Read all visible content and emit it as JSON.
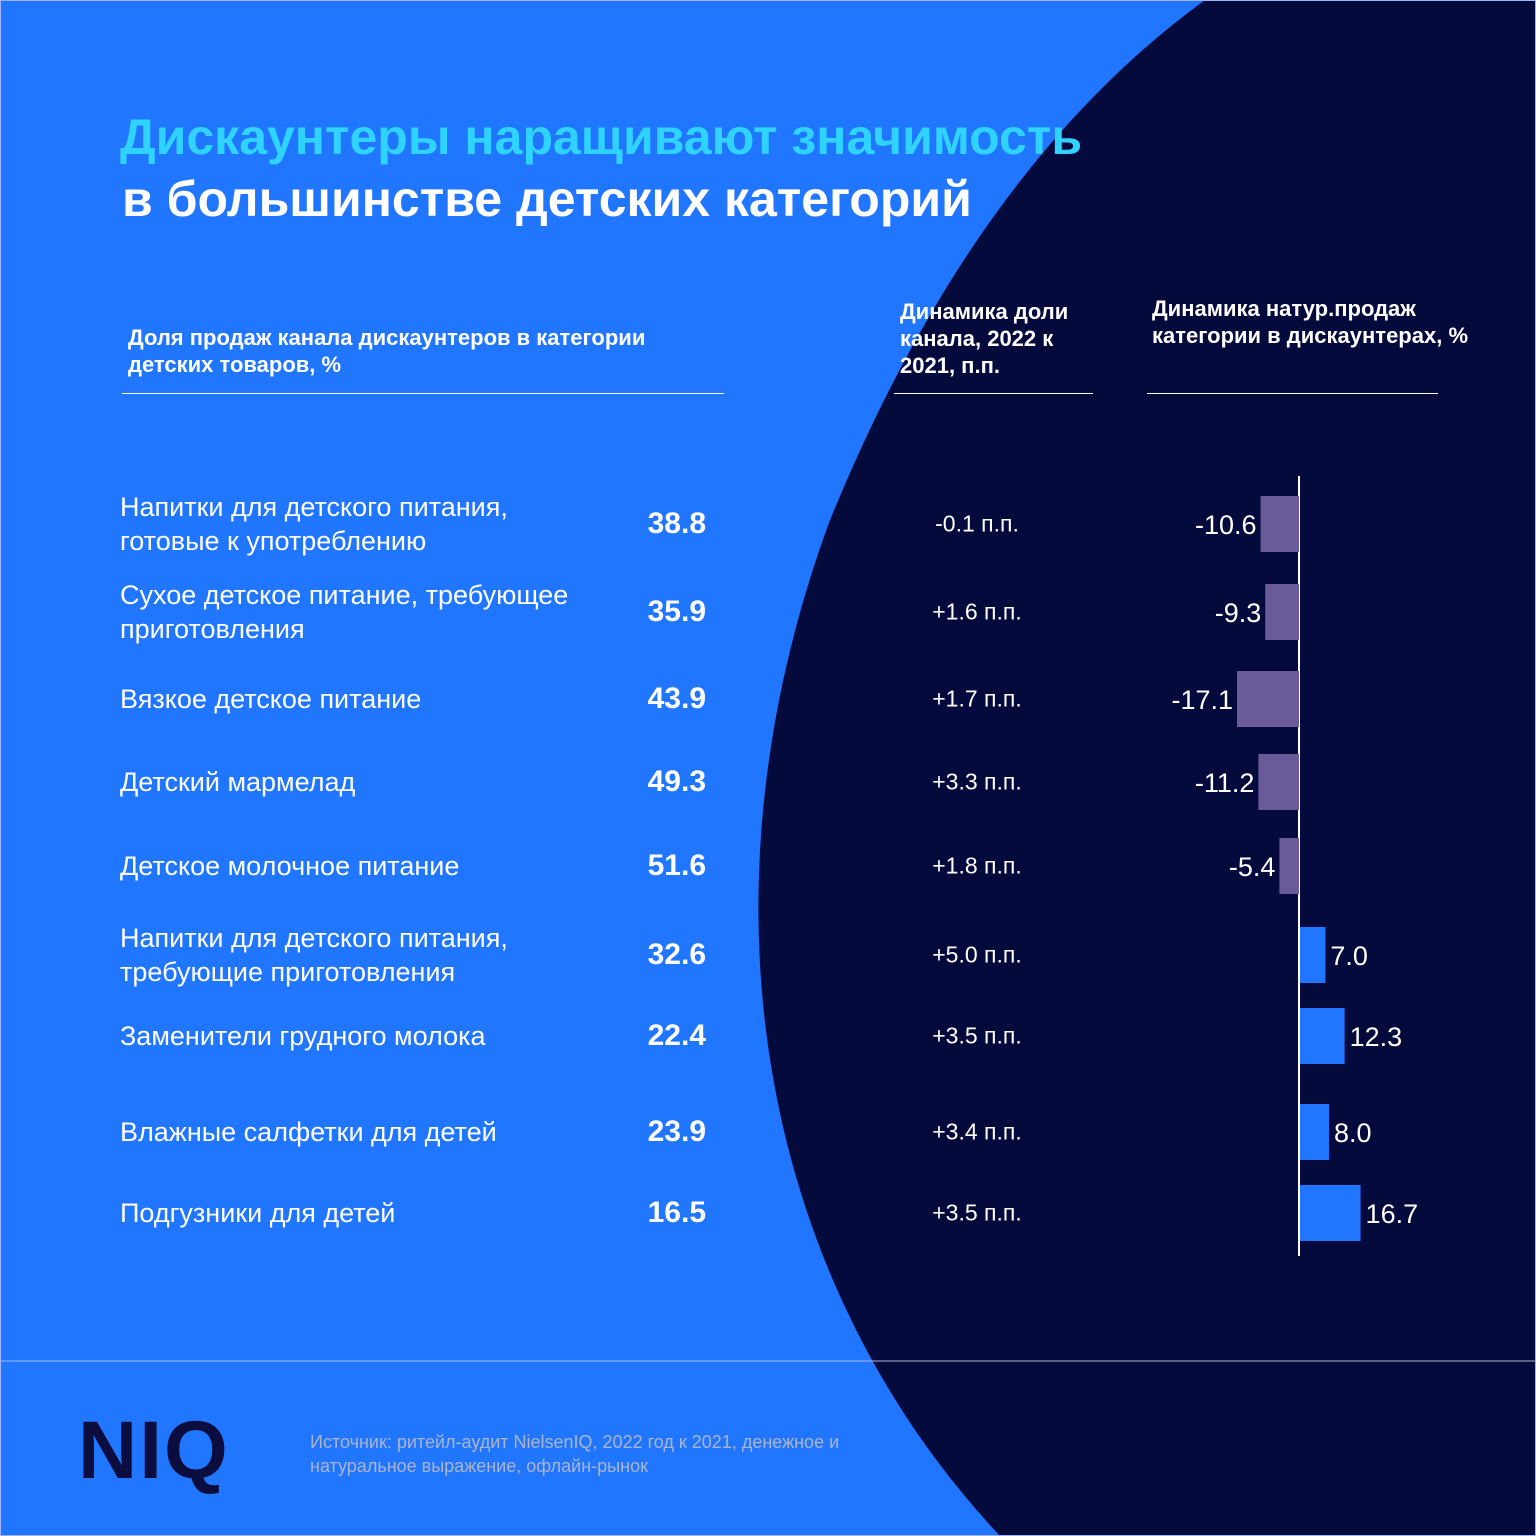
{
  "title": {
    "line1": "Дискаунтеры наращивают значимость",
    "line2": "в большинстве детских категорий"
  },
  "headers": {
    "share": "Доля продаж канала дискаунтеров в категории детских товаров, %",
    "share_dynamics": "Динамика доли канала, 2022 к 2021, п.п.",
    "volume_dynamics": "Динамика натур.продаж категории в дискаунтерах, %"
  },
  "colors": {
    "background_light": "#2176ff",
    "background_dark": "#050a3c",
    "title_accent": "#2fd3ff",
    "bar_negative": "#6b5a99",
    "bar_positive": "#2176ff"
  },
  "chart_data": {
    "type": "table",
    "rows": [
      {
        "category": "Напитки для детского питания, готовые к употреблению",
        "share": "38.8",
        "share_change": "-0.1 п.п.",
        "volume_change": -10.6,
        "volume_label": "-10.6"
      },
      {
        "category": "Сухое детское питание, требующее приготовления",
        "share": "35.9",
        "share_change": "+1.6 п.п.",
        "volume_change": -9.3,
        "volume_label": "-9.3"
      },
      {
        "category": "Вязкое детское питание",
        "share": "43.9",
        "share_change": "+1.7 п.п.",
        "volume_change": -17.1,
        "volume_label": "-17.1"
      },
      {
        "category": "Детский мармелад",
        "share": "49.3",
        "share_change": "+3.3 п.п.",
        "volume_change": -11.2,
        "volume_label": "-11.2"
      },
      {
        "category": "Детское молочное питание",
        "share": "51.6",
        "share_change": "+1.8 п.п.",
        "volume_change": -5.4,
        "volume_label": "-5.4"
      },
      {
        "category": "Напитки для детского питания, требующие приготовления",
        "share": "32.6",
        "share_change": "+5.0 п.п.",
        "volume_change": 7.0,
        "volume_label": "7.0"
      },
      {
        "category": "Заменители грудного молока",
        "share": "22.4",
        "share_change": "+3.5 п.п.",
        "volume_change": 12.3,
        "volume_label": "12.3"
      },
      {
        "category": "Влажные салфетки для детей",
        "share": "23.9",
        "share_change": "+3.4 п.п.",
        "volume_change": 8.0,
        "volume_label": "8.0"
      },
      {
        "category": "Подгузники для детей",
        "share": "16.5",
        "share_change": "+3.5 п.п.",
        "volume_change": 16.7,
        "volume_label": "16.7"
      }
    ]
  },
  "footer": {
    "logo": "NIQ",
    "source": "Источник: ритейл-аудит NielsenIQ, 2022 год к 2021, денежное и натуральное выражение, офлайн-рынок"
  }
}
